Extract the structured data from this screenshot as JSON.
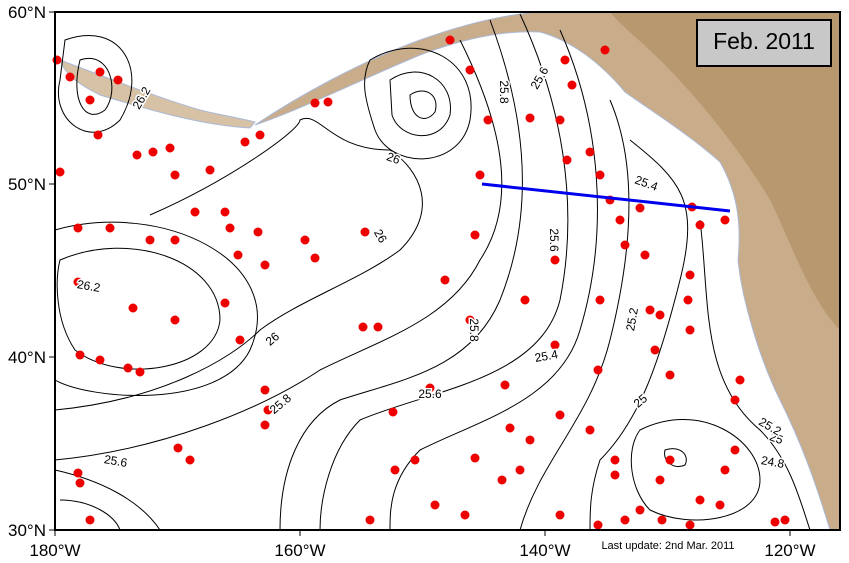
{
  "title": "Feb. 2011",
  "footnote": "Last update: 2nd Mar. 2011",
  "lat_labels": [
    "60°N",
    "50°N",
    "40°N",
    "30°N"
  ],
  "lon_labels": [
    "180°W",
    "160°W",
    "140°W",
    "120°W"
  ],
  "contour_labels": [
    "26.2",
    "26",
    "26",
    "25.8",
    "25.6",
    "26.2",
    "26",
    "25.8",
    "25.6",
    "25.4",
    "25.8",
    "25.6",
    "25.4",
    "25.2",
    "25",
    "25.6",
    "24.8",
    "25",
    "25.2"
  ]
}
